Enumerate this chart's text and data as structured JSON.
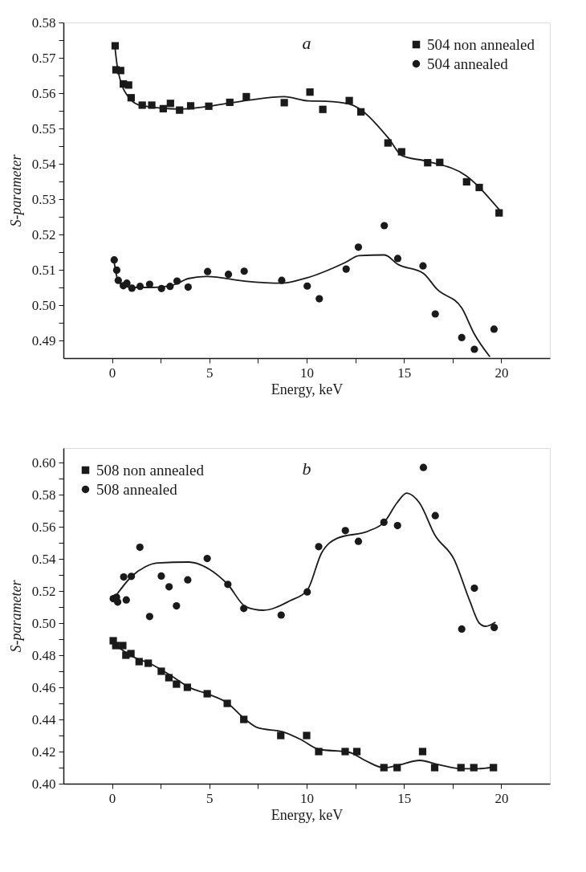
{
  "chart_data": [
    {
      "type": "scatter",
      "xlabel": "Energy, keV",
      "ylabel": "S-parameter",
      "annotations": [
        "a"
      ],
      "legend": "top right",
      "grid": false,
      "xlim": [
        -2.5,
        22.5
      ],
      "ylim": [
        0.485,
        0.58
      ],
      "xticks": [
        0,
        {
          "value": 2.5,
          "label": null
        },
        5,
        {
          "value": 7.5,
          "label": null
        },
        10,
        {
          "value": 12.5,
          "label": null
        },
        15,
        {
          "value": 17.5,
          "label": null
        },
        20
      ],
      "yticks": [
        0.49,
        {
          "value": 0.495,
          "label": null
        },
        {
          "value": 0.5,
          "label": "0.50"
        },
        {
          "value": 0.505,
          "label": null
        },
        0.51,
        {
          "value": 0.515,
          "label": null
        },
        0.52,
        {
          "value": 0.525,
          "label": null
        },
        0.53,
        {
          "value": 0.535,
          "label": null
        },
        0.54,
        {
          "value": 0.545,
          "label": null
        },
        0.55,
        {
          "value": 0.555,
          "label": null
        },
        0.56,
        {
          "value": 0.565,
          "label": null
        },
        0.57,
        {
          "value": 0.575,
          "label": null
        },
        0.58
      ],
      "series": [
        {
          "name": "504 non annealed",
          "type": "scatter",
          "marker": "square",
          "color": "#1a1a1a",
          "x": [
            0.16,
            0.2,
            0.44,
            0.58,
            0.85,
            0.98,
            1.55,
            2.04,
            2.63,
            3.0,
            3.47,
            4.04,
            4.97,
            6.05,
            6.9,
            8.85,
            10.17,
            10.83,
            12.19,
            12.79,
            14.18,
            14.88,
            16.22,
            16.84,
            18.22,
            18.87,
            19.89
          ],
          "values": [
            0.5734,
            0.5666,
            0.5664,
            0.5626,
            0.5623,
            0.5587,
            0.5566,
            0.5566,
            0.5556,
            0.5571,
            0.5552,
            0.5564,
            0.5563,
            0.5574,
            0.559,
            0.5573,
            0.5603,
            0.5554,
            0.5579,
            0.5547,
            0.5459,
            0.5434,
            0.5403,
            0.5404,
            0.5349,
            0.5333,
            0.5261
          ]
        },
        {
          "name": "504 annealed",
          "type": "scatter",
          "marker": "circle",
          "color": "#1a1a1a",
          "x": [
            0.11,
            0.24,
            0.32,
            0.58,
            0.76,
            1.02,
            1.44,
            1.93,
            2.54,
            2.98,
            3.34,
            3.91,
            4.91,
            5.98,
            6.79,
            8.72,
            10.03,
            10.65,
            12.03,
            12.66,
            13.99,
            14.68,
            15.98,
            16.61,
            17.97,
            18.62,
            19.63
          ],
          "values": [
            0.5128,
            0.5099,
            0.507,
            0.5055,
            0.5062,
            0.5048,
            0.5053,
            0.5059,
            0.5047,
            0.5053,
            0.5068,
            0.5051,
            0.5095,
            0.5087,
            0.5096,
            0.507,
            0.5054,
            0.5018,
            0.5102,
            0.5164,
            0.5225,
            0.5132,
            0.5111,
            0.4975,
            0.4908,
            0.4875,
            0.4932
          ]
        },
        {
          "type": "line",
          "color": "#1a1a1a",
          "line_style": "solid",
          "x": [
            0.15,
            0.3,
            0.9,
            1.5,
            3.5,
            5.0,
            7.0,
            8.85,
            10.1,
            11.0,
            12.2,
            14.2,
            14.9,
            16.2,
            18.2,
            19.9
          ],
          "values": [
            0.573,
            0.5665,
            0.5585,
            0.5565,
            0.5555,
            0.5563,
            0.558,
            0.559,
            0.5578,
            0.5577,
            0.5569,
            0.5473,
            0.5423,
            0.5407,
            0.5366,
            0.527
          ]
        },
        {
          "type": "line",
          "color": "#1a1a1a",
          "line_style": "solid",
          "x": [
            0.1,
            0.3,
            0.6,
            1.0,
            2.0,
            3.0,
            3.5,
            3.9,
            4.9,
            6.8,
            8.7,
            10.0,
            12.0,
            12.7,
            14.0,
            14.7,
            16.0,
            16.7,
            17.97,
            18.6,
            19.4
          ],
          "values": [
            0.5125,
            0.507,
            0.5055,
            0.505,
            0.505,
            0.5055,
            0.5065,
            0.5075,
            0.5081,
            0.5068,
            0.5062,
            0.5077,
            0.5121,
            0.514,
            0.5142,
            0.5115,
            0.509,
            0.5045,
            0.4992,
            0.492,
            0.4855
          ]
        }
      ]
    },
    {
      "type": "scatter",
      "xlabel": "Energy, keV",
      "ylabel": "S-parameter",
      "annotations": [
        "b"
      ],
      "legend": "top left",
      "grid": false,
      "xlim": [
        -2.5,
        22.5
      ],
      "ylim": [
        0.4,
        0.609
      ],
      "xticks": [
        0,
        {
          "value": 2.5,
          "label": null
        },
        5,
        {
          "value": 7.5,
          "label": null
        },
        10,
        {
          "value": 12.5,
          "label": null
        },
        15,
        {
          "value": 17.5,
          "label": null
        },
        20
      ],
      "yticks": [
        {
          "value": 0.4,
          "label": "0.40"
        },
        {
          "value": 0.41,
          "label": null
        },
        0.42,
        {
          "value": 0.43,
          "label": null
        },
        0.44,
        {
          "value": 0.45,
          "label": null
        },
        0.46,
        {
          "value": 0.47,
          "label": null
        },
        0.48,
        {
          "value": 0.49,
          "label": null
        },
        {
          "value": 0.5,
          "label": "0.50"
        },
        {
          "value": 0.51,
          "label": null
        },
        0.52,
        {
          "value": 0.53,
          "label": null
        },
        0.54,
        {
          "value": 0.55,
          "label": null
        },
        0.56,
        {
          "value": 0.57,
          "label": null
        },
        0.58,
        {
          "value": 0.59,
          "label": null
        },
        {
          "value": 0.6,
          "label": "0.60"
        }
      ],
      "series": [
        {
          "name": "508 non annealed",
          "type": "scatter",
          "marker": "square",
          "color": "#1a1a1a",
          "x": [
            0.06,
            0.19,
            0.55,
            0.71,
            0.97,
            1.39,
            1.86,
            2.53,
            2.92,
            3.31,
            3.87,
            4.89,
            5.92,
            6.77,
            8.67,
            10.0,
            10.62,
            11.98,
            12.58,
            13.97,
            14.65,
            15.96,
            16.58,
            17.93,
            18.59,
            19.6
          ],
          "values": [
            0.489,
            0.486,
            0.486,
            0.48,
            0.481,
            0.476,
            0.475,
            0.47,
            0.466,
            0.462,
            0.46,
            0.456,
            0.45,
            0.44,
            0.43,
            0.43,
            0.42,
            0.42,
            0.42,
            0.41,
            0.41,
            0.42,
            0.41,
            0.41,
            0.41,
            0.41
          ]
        },
        {
          "name": "508 annealed",
          "type": "scatter",
          "marker": "circle",
          "color": "#1a1a1a",
          "x": [
            0.06,
            0.23,
            0.29,
            0.6,
            0.73,
            0.99,
            1.43,
            1.93,
            2.53,
            2.93,
            3.31,
            3.89,
            4.89,
            5.95,
            6.77,
            8.69,
            10.03,
            10.62,
            11.99,
            12.66,
            13.97,
            14.67,
            16.0,
            16.61,
            17.97,
            18.62,
            19.64
          ],
          "values": [
            0.5152,
            0.5161,
            0.5131,
            0.5287,
            0.5144,
            0.5291,
            0.5472,
            0.5041,
            0.5293,
            0.5226,
            0.5107,
            0.5269,
            0.5402,
            0.5241,
            0.5091,
            0.505,
            0.5194,
            0.5476,
            0.5576,
            0.5509,
            0.5628,
            0.5607,
            0.5969,
            0.5669,
            0.4963,
            0.5217,
            0.4972
          ]
        },
        {
          "type": "line",
          "color": "#1a1a1a",
          "line_style": "solid",
          "x": [
            0.1,
            1.0,
            2.0,
            3.0,
            4.0,
            5.0,
            5.9,
            6.8,
            7.5,
            8.8,
            9.7,
            10.6,
            12.2,
            13.0,
            14.0,
            14.8,
            15.8,
            16.8,
            18.0,
            18.8,
            19.6
          ],
          "values": [
            0.487,
            0.4795,
            0.4745,
            0.4675,
            0.4598,
            0.4555,
            0.4505,
            0.4405,
            0.4348,
            0.4322,
            0.4275,
            0.4215,
            0.4195,
            0.4145,
            0.4098,
            0.4118,
            0.4145,
            0.4118,
            0.4093,
            0.4093,
            0.4103
          ]
        },
        {
          "type": "line",
          "color": "#1a1a1a",
          "line_style": "solid",
          "x": [
            0.23,
            1.0,
            1.7,
            2.33,
            3.95,
            5.0,
            5.95,
            6.87,
            7.76,
            9.14,
            10.03,
            10.76,
            11.57,
            13.19,
            14.0,
            14.65,
            15.14,
            15.79,
            16.6,
            17.57,
            18.38,
            18.87,
            19.19,
            19.68
          ],
          "values": [
            0.5176,
            0.529,
            0.535,
            0.5374,
            0.538,
            0.5335,
            0.524,
            0.5102,
            0.508,
            0.5139,
            0.5204,
            0.5435,
            0.5528,
            0.5574,
            0.563,
            0.575,
            0.5809,
            0.575,
            0.5546,
            0.5398,
            0.5139,
            0.5,
            0.498,
            0.5004
          ]
        }
      ]
    }
  ]
}
